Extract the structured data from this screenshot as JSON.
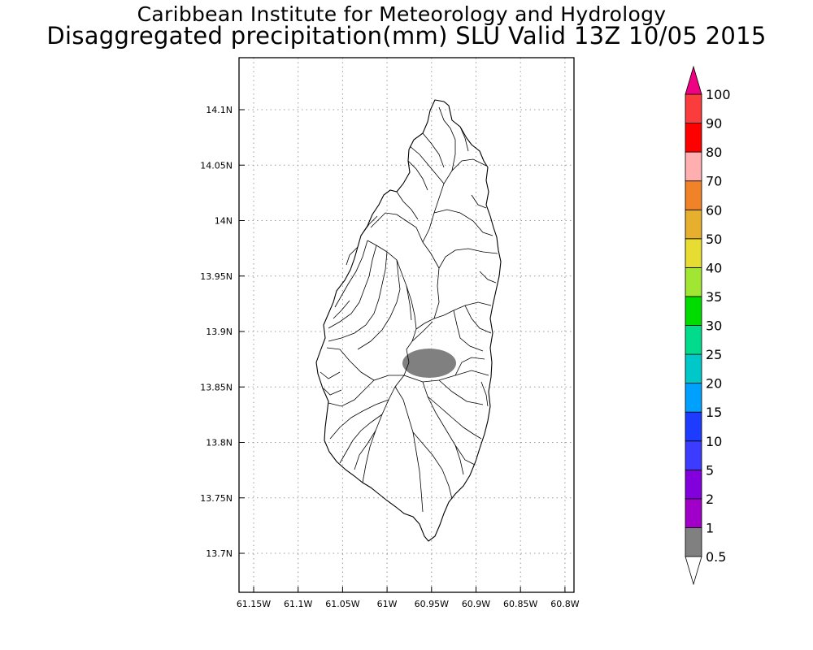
{
  "header": {
    "title": "Caribbean Institute for Meteorology and Hydrology",
    "subtitle": "Disaggregated precipitation(mm) SLU Valid 13Z 10/05 2015"
  },
  "map": {
    "region": "Saint Lucia",
    "lon_range": [
      -61.17,
      -60.79
    ],
    "lat_range": [
      13.665,
      14.145
    ],
    "x_ticks": [
      "61.15W",
      "61.1W",
      "61.05W",
      "61W",
      "60.95W",
      "60.9W",
      "60.85W",
      "60.8W"
    ],
    "y_ticks": [
      "14.1N",
      "14.05N",
      "14N",
      "13.95N",
      "13.9N",
      "13.85N",
      "13.8N",
      "13.75N",
      "13.7N"
    ],
    "grid": true,
    "precip_area": {
      "value_bin": "0.5-1",
      "center_lon": -60.955,
      "center_lat": 13.872,
      "color": "#808080"
    }
  },
  "colorbar": {
    "labels": [
      "0.5",
      "1",
      "2",
      "5",
      "10",
      "15",
      "20",
      "25",
      "30",
      "35",
      "40",
      "50",
      "60",
      "70",
      "80",
      "90",
      "100"
    ],
    "colors": [
      "#808080",
      "#a000c8",
      "#8200dc",
      "#3c3cff",
      "#1e3cff",
      "#00a0ff",
      "#00c8c8",
      "#00dc8c",
      "#00dc00",
      "#a0e632",
      "#e6dc32",
      "#e6af2d",
      "#f08228",
      "#ffafaf",
      "#ff0000",
      "#fa3c3c",
      "#f00082"
    ],
    "under_color": "#ffffff",
    "over_color": "#f00082"
  }
}
